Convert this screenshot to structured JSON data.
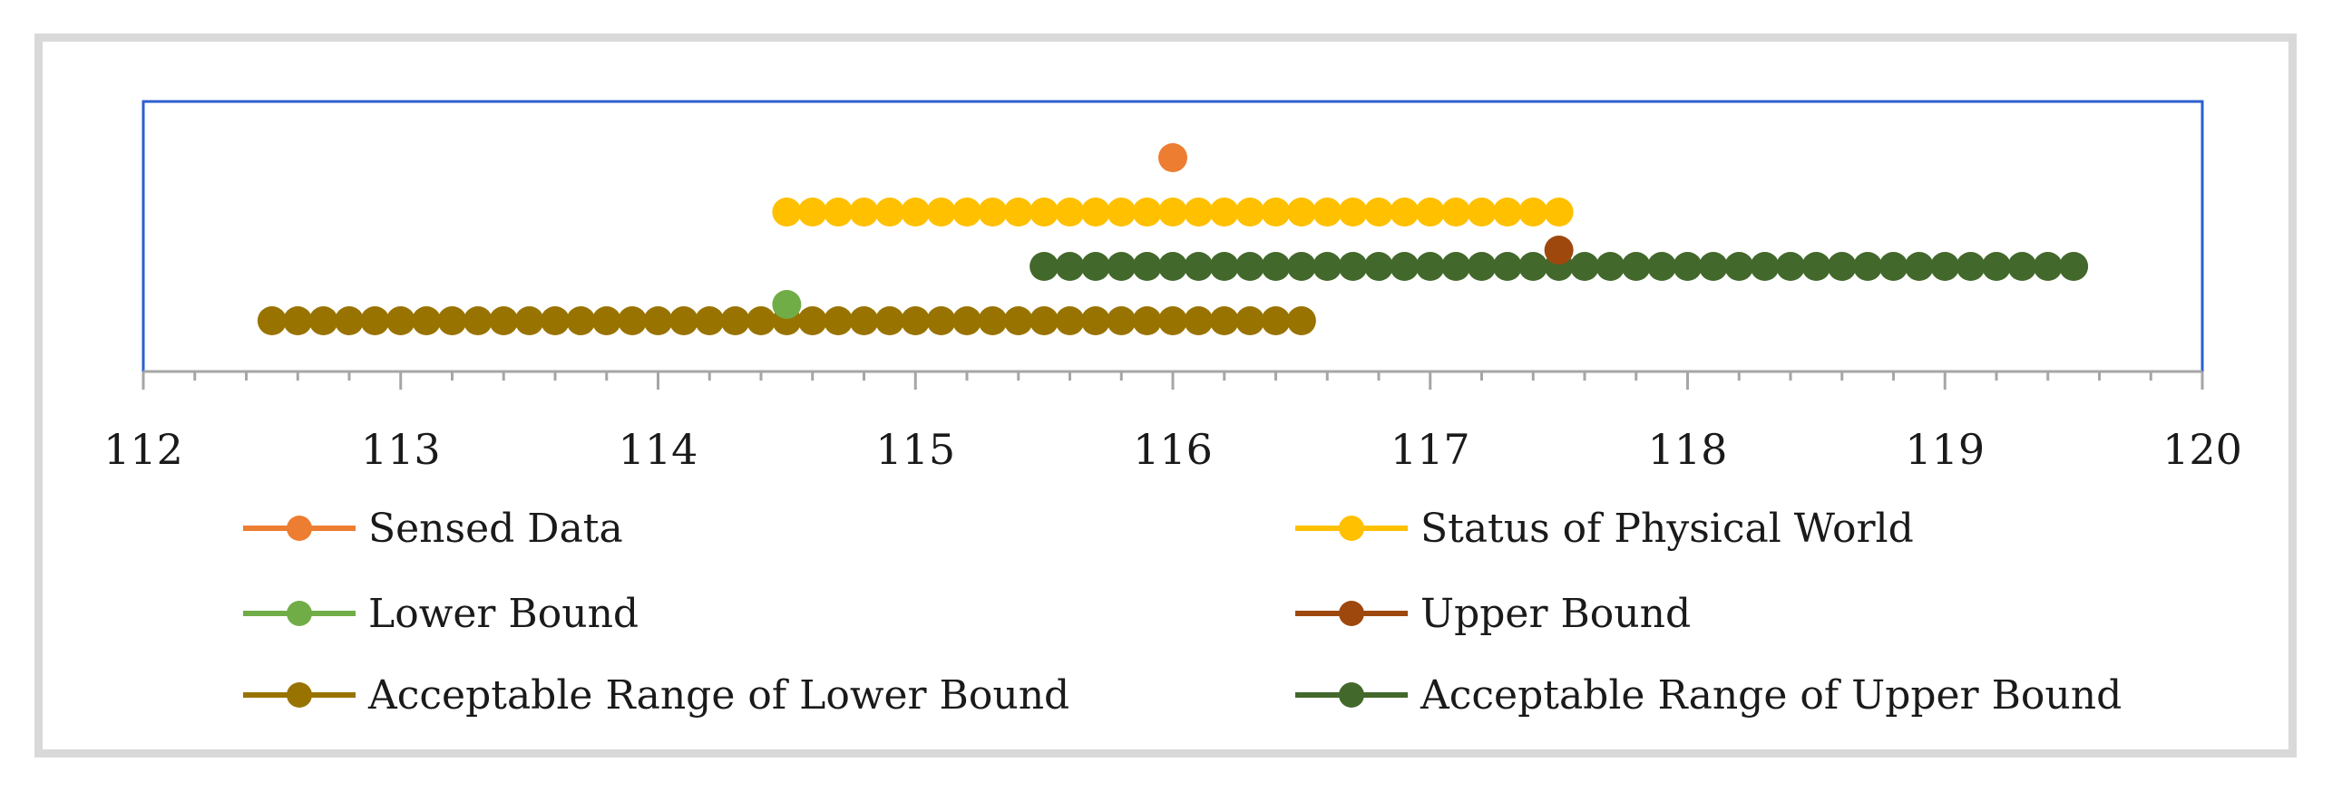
{
  "chart_data": {
    "type": "scatter",
    "title": "",
    "xlabel": "",
    "ylabel": "",
    "xlim": [
      112,
      120
    ],
    "x_major_ticks": [
      "112",
      "113",
      "114",
      "115",
      "116",
      "117",
      "118",
      "119",
      "120"
    ],
    "x_minor_step": 0.2,
    "grid": false,
    "legend_position": "bottom",
    "colors": {
      "plot_border": "#2e5fcf",
      "axis": "#a6a6a6",
      "frame": "#d9d9d9"
    },
    "series": [
      {
        "name": "Sensed Data",
        "color": "#ed7d31",
        "level": 4,
        "x": [
          116.0
        ]
      },
      {
        "name": "Status of Physical World",
        "color": "#ffc000",
        "level": 3,
        "x_range": [
          114.5,
          117.5
        ],
        "step": 0.1
      },
      {
        "name": "Lower Bound",
        "color": "#70ad47",
        "level": 1.3,
        "x": [
          114.5
        ]
      },
      {
        "name": "Upper Bound",
        "color": "#9e480e",
        "level": 2.3,
        "x": [
          117.5
        ]
      },
      {
        "name": "Acceptable Range of Lower Bound",
        "color": "#997300",
        "level": 1,
        "x_range": [
          112.5,
          116.5
        ],
        "step": 0.1
      },
      {
        "name": "Acceptable Range of Upper Bound",
        "color": "#43682b",
        "level": 2,
        "x_range": [
          115.5,
          119.5
        ],
        "step": 0.1
      }
    ],
    "draw_order": [
      4,
      5,
      2,
      3,
      1,
      0
    ],
    "legend_order": [
      0,
      1,
      2,
      3,
      4,
      5
    ]
  }
}
